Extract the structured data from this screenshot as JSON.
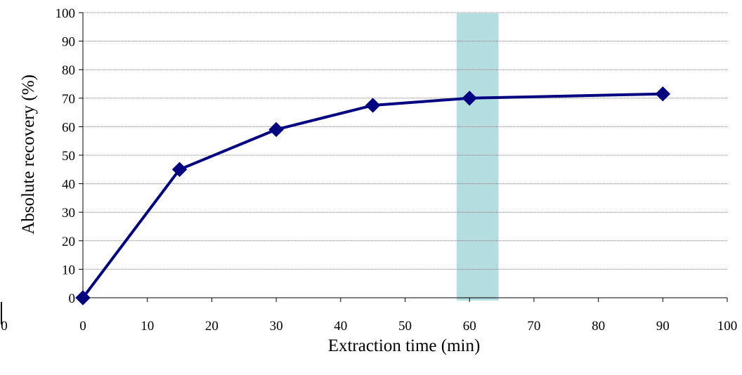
{
  "chart_data": {
    "type": "line",
    "title": "",
    "xlabel": "Extraction time (min)",
    "ylabel": "Absolute recovery (%)",
    "xlim": [
      0,
      100
    ],
    "ylim": [
      0,
      100
    ],
    "x_ticks": [
      0,
      10,
      20,
      30,
      40,
      50,
      60,
      70,
      80,
      90,
      100
    ],
    "y_ticks": [
      0,
      10,
      20,
      30,
      40,
      50,
      60,
      70,
      80,
      90,
      100
    ],
    "grid": {
      "horizontal": true,
      "style": "dotted"
    },
    "legend": "none",
    "highlight_band": {
      "x_from": 58,
      "x_to": 64.5,
      "color": "#b4dde0"
    },
    "series": [
      {
        "marker": "diamond",
        "color": "#000080",
        "x": [
          0,
          15,
          30,
          45,
          60,
          90
        ],
        "y": [
          0,
          45,
          59,
          67.5,
          70,
          71.5
        ]
      }
    ],
    "stray_label": "0"
  }
}
